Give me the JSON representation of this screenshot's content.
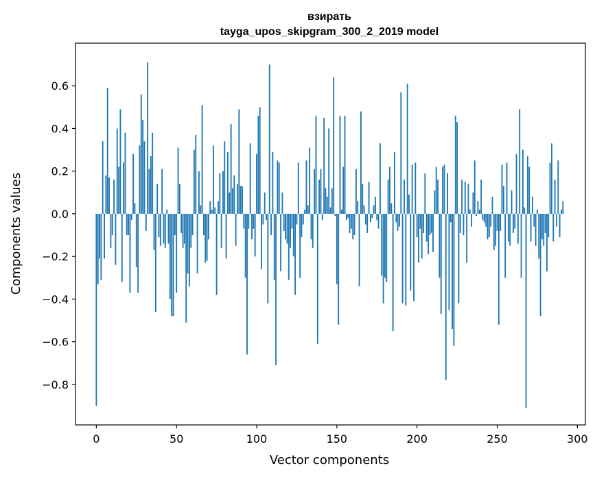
{
  "chart_data": {
    "type": "bar",
    "title_line1": "взирать",
    "title_line2": "tayga_upos_skipgram_300_2_2019 model",
    "xlabel": "Vector components",
    "ylabel": "Components values",
    "xlim": [
      -13,
      305
    ],
    "ylim": [
      -0.99,
      0.8
    ],
    "xticks": [
      0,
      50,
      100,
      150,
      200,
      250,
      300
    ],
    "xtick_labels": [
      "0",
      "50",
      "100",
      "150",
      "200",
      "250",
      "300"
    ],
    "yticks": [
      -0.8,
      -0.6,
      -0.4,
      -0.2,
      0.0,
      0.2,
      0.4,
      0.6
    ],
    "ytick_labels": [
      "−0.8",
      "−0.6",
      "−0.4",
      "−0.2",
      "0.0",
      "0.2",
      "0.4",
      "0.6"
    ],
    "bar_color": "#1f77b4",
    "x_start": 0,
    "values": [
      -0.9,
      -0.33,
      -0.21,
      -0.31,
      0.34,
      -0.21,
      0.18,
      0.59,
      0.17,
      -0.16,
      -0.1,
      0.16,
      -0.24,
      0.4,
      0.22,
      0.49,
      -0.32,
      0.24,
      0.38,
      -0.1,
      -0.1,
      -0.37,
      -0.03,
      0.28,
      0.05,
      -0.25,
      -0.37,
      0.32,
      0.56,
      0.44,
      0.34,
      -0.08,
      0.71,
      0.21,
      0.27,
      0.38,
      -0.17,
      -0.46,
      0.14,
      -0.11,
      -0.15,
      0.21,
      -0.14,
      -0.16,
      0.02,
      -0.14,
      -0.4,
      -0.48,
      -0.48,
      -0.1,
      -0.37,
      0.31,
      0.14,
      -0.09,
      -0.16,
      -0.14,
      -0.51,
      -0.28,
      -0.34,
      -0.16,
      -0.1,
      0.3,
      0.37,
      -0.28,
      0.2,
      0.04,
      0.51,
      -0.1,
      -0.23,
      -0.22,
      -0.12,
      0.06,
      0.02,
      0.32,
      0.03,
      -0.38,
      0.06,
      0.19,
      -0.16,
      0.2,
      0.34,
      -0.21,
      0.29,
      0.1,
      0.42,
      0.12,
      0.18,
      -0.15,
      0.14,
      0.49,
      0.13,
      0.13,
      -0.07,
      -0.3,
      -0.66,
      -0.07,
      0.33,
      -0.12,
      -0.07,
      -0.2,
      0.28,
      0.46,
      0.5,
      -0.26,
      -0.05,
      0.1,
      -0.03,
      -0.42,
      0.7,
      -0.1,
      0.29,
      -0.31,
      -0.71,
      0.25,
      0.24,
      -0.27,
      0.1,
      -0.08,
      -0.12,
      -0.14,
      -0.31,
      -0.16,
      -0.07,
      -0.2,
      -0.38,
      -0.05,
      0.24,
      -0.3,
      -0.11,
      -0.05,
      0.02,
      0.25,
      0.04,
      0.31,
      -0.12,
      -0.16,
      0.21,
      0.46,
      -0.61,
      0.16,
      0.21,
      -0.03,
      0.45,
      0.12,
      0.08,
      0.4,
      0.03,
      0.12,
      0.64,
      -0.01,
      -0.33,
      -0.52,
      0.46,
      0.02,
      0.22,
      0.46,
      -0.03,
      -0.02,
      -0.09,
      -0.07,
      -0.12,
      -0.1,
      0.21,
      0.06,
      -0.34,
      0.48,
      0.14,
      0.04,
      -0.05,
      -0.09,
      0.15,
      -0.04,
      -0.02,
      0.04,
      0.08,
      -0.03,
      -0.07,
      0.33,
      -0.29,
      -0.42,
      -0.3,
      -0.32,
      0.16,
      0.22,
      0.05,
      -0.55,
      0.29,
      -0.04,
      -0.08,
      -0.06,
      0.57,
      -0.42,
      0.16,
      -0.43,
      0.61,
      0.09,
      -0.36,
      0.23,
      -0.41,
      0.24,
      -0.11,
      -0.23,
      -0.07,
      -0.21,
      -0.09,
      0.19,
      -0.13,
      -0.19,
      -0.1,
      -0.09,
      -0.18,
      0.11,
      0.22,
      0.16,
      -0.3,
      -0.47,
      0.22,
      0.23,
      -0.78,
      0.19,
      -0.45,
      -0.04,
      -0.54,
      -0.62,
      0.46,
      0.43,
      -0.42,
      -0.09,
      0.16,
      -0.1,
      0.15,
      -0.23,
      0.14,
      0.02,
      -0.06,
      0.1,
      0.25,
      -0.01,
      0.06,
      0.02,
      0.16,
      -0.03,
      -0.04,
      -0.06,
      -0.12,
      -0.11,
      -0.06,
      0.08,
      -0.17,
      -0.15,
      -0.08,
      -0.52,
      -0.08,
      0.23,
      0.13,
      -0.3,
      0.24,
      -0.13,
      -0.15,
      0.11,
      -0.09,
      -0.07,
      0.28,
      -0.14,
      0.49,
      -0.3,
      0.3,
      0.03,
      -0.91,
      0.27,
      0.22,
      -0.13,
      0.08,
      -0.06,
      -0.15,
      0.02,
      -0.21,
      -0.48,
      -0.12,
      -0.15,
      -0.09,
      -0.27,
      -0.11,
      0.24,
      0.33,
      -0.13,
      0.16,
      -0.06,
      0.25,
      -0.11,
      0.02,
      0.06
    ]
  }
}
